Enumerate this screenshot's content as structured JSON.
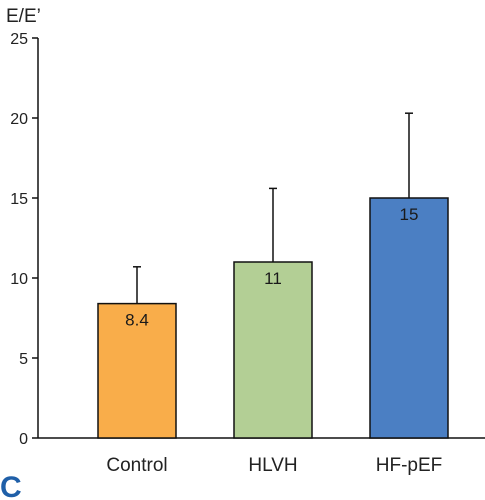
{
  "panel_letter": "C",
  "chart_data": {
    "type": "bar",
    "ylabel": "E/E’",
    "xlabel": "",
    "ylim": [
      0,
      25
    ],
    "yticks": [
      0,
      5,
      10,
      15,
      20,
      25
    ],
    "categories": [
      "Control",
      "HLVH",
      "HF-pEF"
    ],
    "values": [
      8.4,
      11,
      15
    ],
    "value_labels": [
      "8.4",
      "11",
      "15"
    ],
    "error_upper": [
      10.7,
      15.6,
      20.3
    ],
    "colors": [
      "#f9ad4a",
      "#b3cf95",
      "#4b7fc3"
    ],
    "bar_outline_color": "#111111",
    "grid": false,
    "legend": "none"
  }
}
